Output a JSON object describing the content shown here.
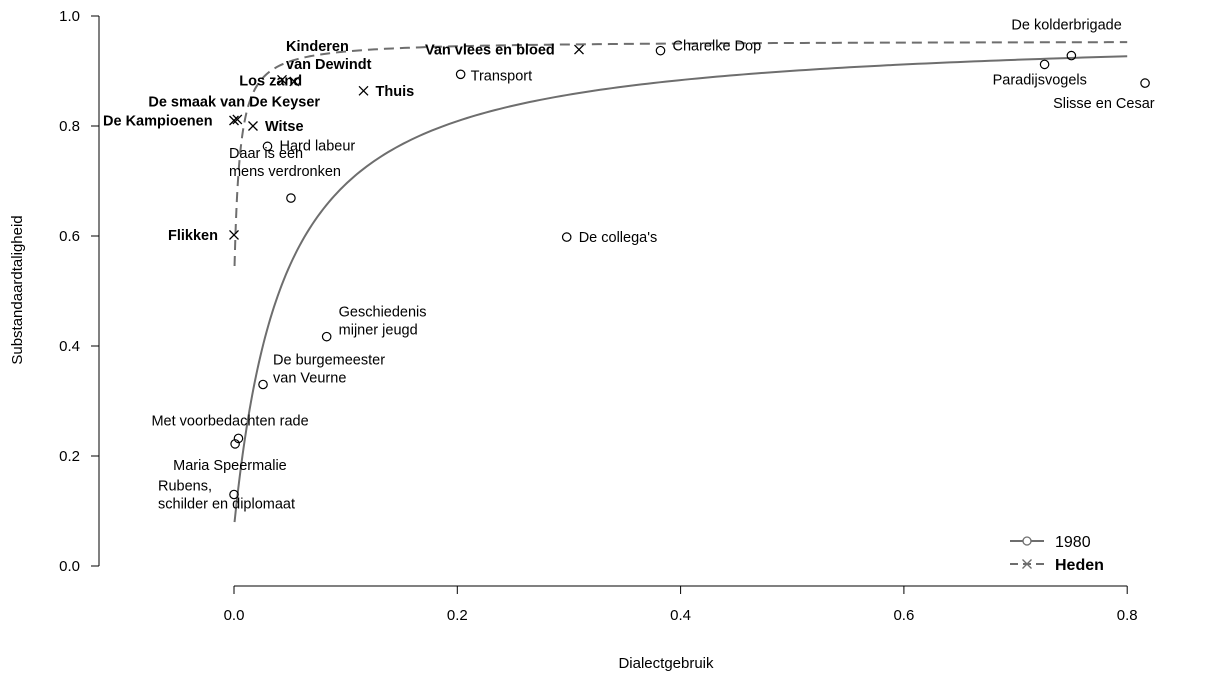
{
  "chart_data": {
    "type": "scatter",
    "xlabel": "Dialectgebruik",
    "ylabel": "Substandaardtaligheid",
    "xlim": [
      -0.15,
      0.85
    ],
    "ylim": [
      0,
      1
    ],
    "x_ticks": [
      "0.0",
      "0.2",
      "0.4",
      "0.6",
      "0.8"
    ],
    "y_ticks": [
      "0.0",
      "0.2",
      "0.4",
      "0.6",
      "0.8",
      "1.0"
    ],
    "legend_position": "bottom-right",
    "legend": [
      {
        "label": "1980",
        "marker": "circle",
        "line": "solid",
        "bold": false
      },
      {
        "label": "Heden",
        "marker": "cross",
        "line": "dashed",
        "bold": true
      }
    ],
    "series": [
      {
        "name": "1980",
        "marker": "circle",
        "points": [
          {
            "label": "Charelke Dop",
            "x": 0.382,
            "y": 0.937
          },
          {
            "label": "Transport",
            "x": 0.203,
            "y": 0.894
          },
          {
            "label": "Hard labeur",
            "x": 0.03,
            "y": 0.763
          },
          {
            "label": "Daar is een\nmens verdronken",
            "x": 0.051,
            "y": 0.669
          },
          {
            "label": "De collega's",
            "x": 0.298,
            "y": 0.598
          },
          {
            "label": "Geschiedenis\nmijner jeugd",
            "x": 0.083,
            "y": 0.417
          },
          {
            "label": "De burgemeester\nvan Veurne",
            "x": 0.026,
            "y": 0.33
          },
          {
            "label": "Met voorbedachten rade",
            "x": 0.004,
            "y": 0.232
          },
          {
            "label": "Maria Speermalie",
            "x": 0.001,
            "y": 0.222
          },
          {
            "label": "Rubens,\nschilder en diplomaat",
            "x": 0.0,
            "y": 0.13
          },
          {
            "label": "De kolderbrigade",
            "x": 0.75,
            "y": 0.928
          },
          {
            "label": "Paradijsvogels",
            "x": 0.726,
            "y": 0.912
          },
          {
            "label": "Slisse en Cesar",
            "x": 0.816,
            "y": 0.878
          }
        ]
      },
      {
        "name": "Heden",
        "marker": "cross",
        "points": [
          {
            "label": "Van vlees en bloed",
            "x": 0.309,
            "y": 0.939
          },
          {
            "label": "Kinderen\nvan Dewindt",
            "x": 0.043,
            "y": 0.884
          },
          {
            "label": "Los zand",
            "x": 0.054,
            "y": 0.881
          },
          {
            "label": "Thuis",
            "x": 0.116,
            "y": 0.864
          },
          {
            "label": "De smaak van De Keyser",
            "x": 0.003,
            "y": 0.812
          },
          {
            "label": "De Kampioenen",
            "x": 0.0,
            "y": 0.81
          },
          {
            "label": "Witse",
            "x": 0.017,
            "y": 0.8
          },
          {
            "label": "Flikken",
            "x": 0.0,
            "y": 0.602
          }
        ]
      }
    ],
    "fit_curves": [
      {
        "series": "1980",
        "style": "solid",
        "color": "#6e6e6e"
      },
      {
        "series": "Heden",
        "style": "dashed",
        "color": "#6e6e6e"
      }
    ]
  }
}
